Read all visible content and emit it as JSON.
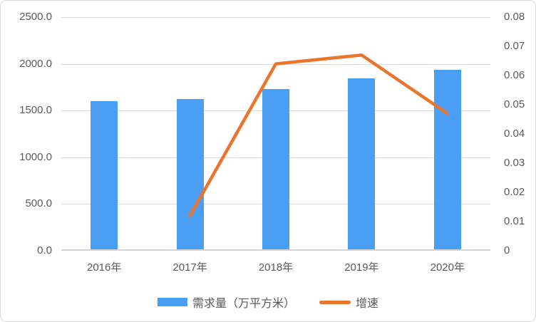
{
  "colors": {
    "bar": "#4a9ff5",
    "line": "#ea752d",
    "grid": "#dcdcdc",
    "axis_line": "#d4d4d4",
    "axis_text": "#595959",
    "frame_border": "#d9d9d9",
    "background": "#ffffff"
  },
  "chart_data": {
    "type": "bar",
    "subtype": "combo-bar-line-dual-axis",
    "title": "",
    "grid": true,
    "legend_position": "bottom",
    "categories": [
      "2016年",
      "2017年",
      "2018年",
      "2019年",
      "2020年"
    ],
    "series": [
      {
        "name": "需求量（万平方米）",
        "type": "bar",
        "axis": "left",
        "color": "#4a9ff5",
        "values": [
          1600,
          1625,
          1730,
          1845,
          1935
        ]
      },
      {
        "name": "增速",
        "type": "line",
        "axis": "right",
        "color": "#ea752d",
        "values": [
          null,
          0.012,
          0.064,
          0.067,
          0.047
        ]
      }
    ],
    "left_axis": {
      "min": 0,
      "max": 2500,
      "step": 500,
      "ticks": [
        {
          "value": 0,
          "label": "0.0"
        },
        {
          "value": 500,
          "label": "500.0"
        },
        {
          "value": 1000,
          "label": "1000.0"
        },
        {
          "value": 1500,
          "label": "1500.0"
        },
        {
          "value": 2000,
          "label": "2000.0"
        },
        {
          "value": 2500,
          "label": "2500.0"
        }
      ]
    },
    "right_axis": {
      "min": 0,
      "max": 0.08,
      "step": 0.01,
      "ticks": [
        {
          "value": 0,
          "label": "0"
        },
        {
          "value": 0.01,
          "label": "0.01"
        },
        {
          "value": 0.02,
          "label": "0.02"
        },
        {
          "value": 0.03,
          "label": "0.03"
        },
        {
          "value": 0.04,
          "label": "0.04"
        },
        {
          "value": 0.05,
          "label": "0.05"
        },
        {
          "value": 0.06,
          "label": "0.06"
        },
        {
          "value": 0.07,
          "label": "0.07"
        },
        {
          "value": 0.08,
          "label": "0.08"
        }
      ]
    }
  },
  "legend": {
    "items": [
      {
        "label": "需求量（万平方米）",
        "swatch": "bar"
      },
      {
        "label": "增速",
        "swatch": "line"
      }
    ]
  }
}
